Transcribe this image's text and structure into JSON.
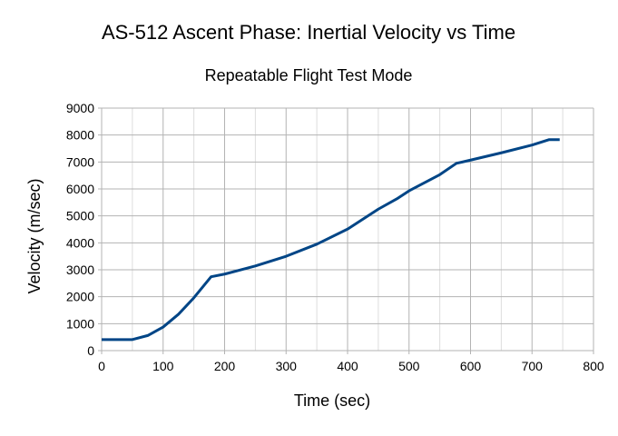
{
  "chart_data": {
    "type": "line",
    "title": "AS-512 Ascent Phase: Inertial Velocity vs Time",
    "subtitle": "Repeatable Flight Test Mode",
    "xlabel": "Time (sec)",
    "ylabel": "Velocity (m/sec)",
    "xlim": [
      0,
      800
    ],
    "ylim": [
      0,
      9000
    ],
    "xticks": [
      0,
      100,
      200,
      300,
      400,
      500,
      600,
      700,
      800
    ],
    "yticks": [
      0,
      1000,
      2000,
      3000,
      4000,
      5000,
      6000,
      7000,
      8000,
      9000
    ],
    "grid": true,
    "legend": "none",
    "color": "#004586",
    "series": [
      {
        "name": "Inertial Velocity",
        "x": [
          0,
          50,
          75,
          100,
          125,
          150,
          178,
          200,
          250,
          300,
          350,
          400,
          450,
          480,
          500,
          550,
          577,
          600,
          650,
          700,
          728,
          745
        ],
        "y": [
          410,
          410,
          560,
          875,
          1350,
          1960,
          2740,
          2840,
          3140,
          3500,
          3950,
          4510,
          5250,
          5630,
          5930,
          6530,
          6950,
          7070,
          7340,
          7630,
          7830,
          7830
        ]
      }
    ]
  }
}
